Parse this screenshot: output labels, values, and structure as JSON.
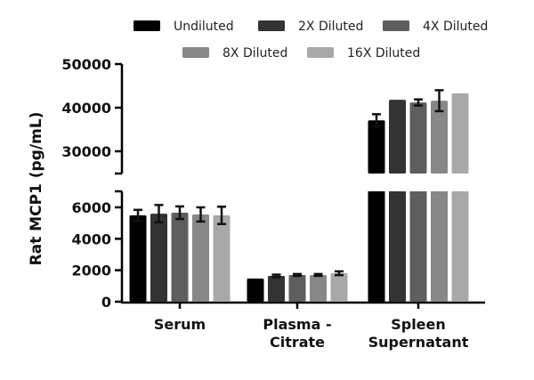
{
  "chart_data": {
    "type": "bar",
    "title": "",
    "xlabel": "",
    "ylabel": "Rat MCP1 (pg/mL)",
    "categories": [
      [
        "Serum"
      ],
      [
        "Plasma -",
        "Citrate"
      ],
      [
        "Spleen",
        "Supernatant"
      ]
    ],
    "y_axis_break": {
      "lower_range": [
        0,
        7000
      ],
      "upper_range": [
        25000,
        50000
      ]
    },
    "lower_ticks": [
      0,
      2000,
      4000,
      6000
    ],
    "upper_ticks": [
      30000,
      40000,
      50000
    ],
    "legend_position": "top",
    "series": [
      {
        "name": "Undiluted",
        "color": "#000000",
        "values": [
          5490,
          1470,
          37100
        ],
        "errors": [
          350,
          0,
          1400
        ]
      },
      {
        "name": "2X Diluted",
        "color": "#333333",
        "values": [
          5600,
          1640,
          41800
        ],
        "errors": [
          550,
          80,
          0
        ]
      },
      {
        "name": "4X Diluted",
        "color": "#5e5e5e",
        "values": [
          5660,
          1700,
          41200
        ],
        "errors": [
          400,
          60,
          700
        ]
      },
      {
        "name": "8X Diluted",
        "color": "#878787",
        "values": [
          5550,
          1700,
          41600
        ],
        "errors": [
          450,
          60,
          2400
        ]
      },
      {
        "name": "16X Diluted",
        "color": "#a8a8a8",
        "values": [
          5490,
          1810,
          43300
        ],
        "errors": [
          550,
          120,
          0
        ]
      }
    ]
  }
}
